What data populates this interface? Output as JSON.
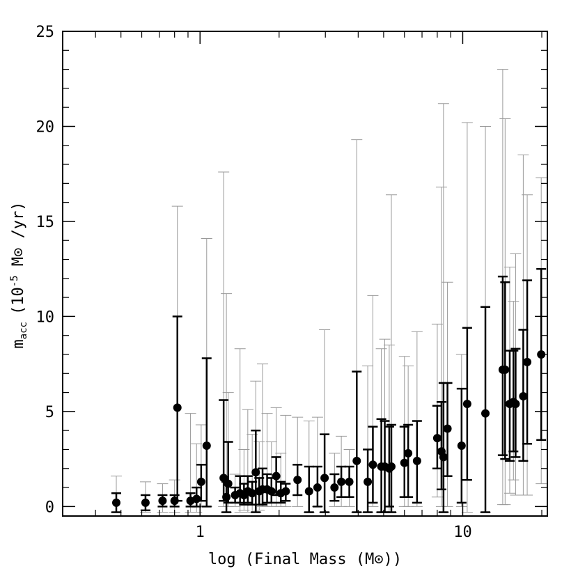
{
  "chart_data": {
    "type": "scatter",
    "xlabel": "log (Final Mass (M⊙))",
    "ylabel_main": "m",
    "ylabel_sub": "acc",
    "ylabel_rest": "(10",
    "ylabel_sup": "-5",
    "ylabel_tail": " M⊙ /yr)",
    "x_scale": "log",
    "xlim": [
      0.3,
      21
    ],
    "ylim": [
      -0.5,
      25
    ],
    "yticks": [
      0,
      5,
      10,
      15,
      20,
      25
    ],
    "ytick_labels": [
      "0",
      "5",
      "10",
      "15",
      "20",
      "25"
    ],
    "xticks": [
      1,
      10
    ],
    "xtick_labels": [
      "1",
      "10"
    ],
    "grid": false,
    "colors": {
      "points": "#000000",
      "inner_error": "#000000",
      "outer_error": "#999999"
    },
    "series": [
      {
        "points": [
          {
            "x": 0.48,
            "y": 0.2,
            "lo": -0.3,
            "hi": 0.7,
            "olo": -0.3,
            "ohi": 1.6
          },
          {
            "x": 0.62,
            "y": 0.2,
            "lo": -0.2,
            "hi": 0.6,
            "olo": -0.3,
            "ohi": 1.3
          },
          {
            "x": 0.72,
            "y": 0.3,
            "lo": 0.0,
            "hi": 0.6,
            "olo": -0.3,
            "ohi": 1.2
          },
          {
            "x": 0.8,
            "y": 0.3,
            "lo": 0.0,
            "hi": 0.6,
            "olo": -0.3,
            "ohi": 1.4
          },
          {
            "x": 0.82,
            "y": 5.2,
            "lo": 0.3,
            "hi": 10.0,
            "olo": 0.3,
            "ohi": 15.8
          },
          {
            "x": 0.92,
            "y": 0.3,
            "lo": 0.0,
            "hi": 0.7,
            "olo": -0.3,
            "ohi": 4.9
          },
          {
            "x": 0.97,
            "y": 0.4,
            "lo": 0.0,
            "hi": 1.0,
            "olo": -0.3,
            "ohi": 3.3
          },
          {
            "x": 1.01,
            "y": 1.3,
            "lo": 0.3,
            "hi": 2.2,
            "olo": 0.0,
            "ohi": 4.3
          },
          {
            "x": 1.06,
            "y": 3.2,
            "lo": 0.0,
            "hi": 7.8,
            "olo": 0.0,
            "ohi": 14.1
          },
          {
            "x": 1.23,
            "y": 1.5,
            "lo": 0.3,
            "hi": 5.6,
            "olo": 0.0,
            "ohi": 17.6
          },
          {
            "x": 1.26,
            "y": 0.5,
            "lo": -0.3,
            "hi": 1.3,
            "olo": -0.3,
            "ohi": 11.2
          },
          {
            "x": 1.28,
            "y": 1.2,
            "lo": 0.2,
            "hi": 3.4,
            "olo": 0.0,
            "ohi": 6.0
          },
          {
            "x": 1.36,
            "y": 0.6,
            "lo": 0.2,
            "hi": 1.0,
            "olo": 0.0,
            "ohi": 1.7
          },
          {
            "x": 1.42,
            "y": 0.7,
            "lo": 0.2,
            "hi": 1.6,
            "olo": -0.3,
            "ohi": 8.3
          },
          {
            "x": 1.47,
            "y": 0.6,
            "lo": 0.1,
            "hi": 1.2,
            "olo": -0.2,
            "ohi": 3.0
          },
          {
            "x": 1.52,
            "y": 0.8,
            "lo": 0.2,
            "hi": 1.6,
            "olo": -0.3,
            "ohi": 5.1
          },
          {
            "x": 1.58,
            "y": 0.7,
            "lo": 0.1,
            "hi": 1.3,
            "olo": -0.3,
            "ohi": 3.8
          },
          {
            "x": 1.63,
            "y": 1.8,
            "lo": -0.3,
            "hi": 4.0,
            "olo": -0.3,
            "ohi": 6.6
          },
          {
            "x": 1.68,
            "y": 0.8,
            "lo": 0.1,
            "hi": 1.5,
            "olo": -0.2,
            "ohi": 3.4
          },
          {
            "x": 1.73,
            "y": 0.9,
            "lo": 0.1,
            "hi": 2.0,
            "olo": 0.0,
            "ohi": 7.5
          },
          {
            "x": 1.8,
            "y": 0.9,
            "lo": 0.2,
            "hi": 1.7,
            "olo": 0.0,
            "ohi": 4.9
          },
          {
            "x": 1.87,
            "y": 0.8,
            "lo": 0.2,
            "hi": 1.5,
            "olo": 0.0,
            "ohi": 3.4
          },
          {
            "x": 1.95,
            "y": 1.6,
            "lo": 0.6,
            "hi": 2.6,
            "olo": 0.0,
            "ohi": 5.2
          },
          {
            "x": 2.03,
            "y": 0.7,
            "lo": 0.2,
            "hi": 1.3,
            "olo": 0.0,
            "ohi": 2.8
          },
          {
            "x": 2.12,
            "y": 0.8,
            "lo": 0.3,
            "hi": 1.2,
            "olo": 0.0,
            "ohi": 4.8
          },
          {
            "x": 2.35,
            "y": 1.4,
            "lo": 0.6,
            "hi": 2.2,
            "olo": 0.0,
            "ohi": 4.7
          },
          {
            "x": 2.6,
            "y": 0.8,
            "lo": -0.3,
            "hi": 2.1,
            "olo": -0.3,
            "ohi": 4.5
          },
          {
            "x": 2.8,
            "y": 1.0,
            "lo": 0.0,
            "hi": 2.1,
            "olo": 0.0,
            "ohi": 4.7
          },
          {
            "x": 2.98,
            "y": 1.5,
            "lo": -0.3,
            "hi": 3.8,
            "olo": -0.3,
            "ohi": 9.3
          },
          {
            "x": 3.25,
            "y": 1.0,
            "lo": 0.3,
            "hi": 1.7,
            "olo": 0.0,
            "ohi": 2.8
          },
          {
            "x": 3.45,
            "y": 1.3,
            "lo": 0.5,
            "hi": 2.1,
            "olo": 0.0,
            "ohi": 3.7
          },
          {
            "x": 3.7,
            "y": 1.3,
            "lo": 0.5,
            "hi": 2.1,
            "olo": 0.0,
            "ohi": 3.0
          },
          {
            "x": 3.95,
            "y": 2.4,
            "lo": -0.3,
            "hi": 7.1,
            "olo": -0.3,
            "ohi": 19.3
          },
          {
            "x": 4.35,
            "y": 1.3,
            "lo": -0.3,
            "hi": 3.0,
            "olo": -0.3,
            "ohi": 7.4
          },
          {
            "x": 4.55,
            "y": 2.2,
            "lo": 0.2,
            "hi": 4.2,
            "olo": 0.0,
            "ohi": 11.1
          },
          {
            "x": 4.9,
            "y": 2.1,
            "lo": -0.3,
            "hi": 4.6,
            "olo": -0.3,
            "ohi": 8.3
          },
          {
            "x": 5.05,
            "y": 2.1,
            "lo": -0.3,
            "hi": 4.5,
            "olo": -0.3,
            "ohi": 8.8
          },
          {
            "x": 5.25,
            "y": 2.0,
            "lo": 0.0,
            "hi": 4.2,
            "olo": -0.3,
            "ohi": 8.5
          },
          {
            "x": 5.35,
            "y": 2.1,
            "lo": -0.3,
            "hi": 4.3,
            "olo": -0.3,
            "ohi": 16.4
          },
          {
            "x": 6.0,
            "y": 2.3,
            "lo": 0.5,
            "hi": 4.2,
            "olo": 0.0,
            "ohi": 7.9
          },
          {
            "x": 6.2,
            "y": 2.8,
            "lo": 0.5,
            "hi": 4.3,
            "olo": 0.0,
            "ohi": 7.4
          },
          {
            "x": 6.7,
            "y": 2.4,
            "lo": 0.2,
            "hi": 4.5,
            "olo": 0.0,
            "ohi": 9.2
          },
          {
            "x": 8.0,
            "y": 3.6,
            "lo": 2.0,
            "hi": 5.3,
            "olo": 0.5,
            "ohi": 9.6
          },
          {
            "x": 8.3,
            "y": 2.9,
            "lo": 0.9,
            "hi": 5.5,
            "olo": 0.0,
            "ohi": 16.8
          },
          {
            "x": 8.45,
            "y": 2.6,
            "lo": -0.3,
            "hi": 6.5,
            "olo": -0.3,
            "ohi": 21.2
          },
          {
            "x": 8.75,
            "y": 4.1,
            "lo": 1.6,
            "hi": 6.5,
            "olo": 0.0,
            "ohi": 11.8
          },
          {
            "x": 9.9,
            "y": 3.2,
            "lo": 0.2,
            "hi": 6.2,
            "olo": 0.0,
            "ohi": 8.0
          },
          {
            "x": 10.4,
            "y": 5.4,
            "lo": 1.4,
            "hi": 9.4,
            "olo": -0.3,
            "ohi": 20.2
          },
          {
            "x": 12.2,
            "y": 4.9,
            "lo": -0.3,
            "hi": 10.5,
            "olo": -0.3,
            "ohi": 20.0
          },
          {
            "x": 14.2,
            "y": 7.2,
            "lo": 2.7,
            "hi": 12.1,
            "olo": 0.1,
            "ohi": 23.0
          },
          {
            "x": 14.5,
            "y": 7.2,
            "lo": 2.5,
            "hi": 11.8,
            "olo": 0.1,
            "ohi": 20.4
          },
          {
            "x": 15.1,
            "y": 5.4,
            "lo": 2.4,
            "hi": 8.2,
            "olo": 0.7,
            "ohi": 12.6
          },
          {
            "x": 15.6,
            "y": 5.5,
            "lo": 2.9,
            "hi": 8.2,
            "olo": 1.4,
            "ohi": 10.8
          },
          {
            "x": 15.9,
            "y": 5.4,
            "lo": 2.6,
            "hi": 8.3,
            "olo": 0.6,
            "ohi": 13.3
          },
          {
            "x": 17.0,
            "y": 5.8,
            "lo": 2.4,
            "hi": 9.3,
            "olo": 0.6,
            "ohi": 18.5
          },
          {
            "x": 17.6,
            "y": 7.6,
            "lo": 3.3,
            "hi": 11.9,
            "olo": 0.6,
            "ohi": 16.4
          },
          {
            "x": 19.9,
            "y": 8.0,
            "lo": 3.5,
            "hi": 12.5,
            "olo": 1.2,
            "ohi": 17.3
          }
        ]
      }
    ]
  }
}
